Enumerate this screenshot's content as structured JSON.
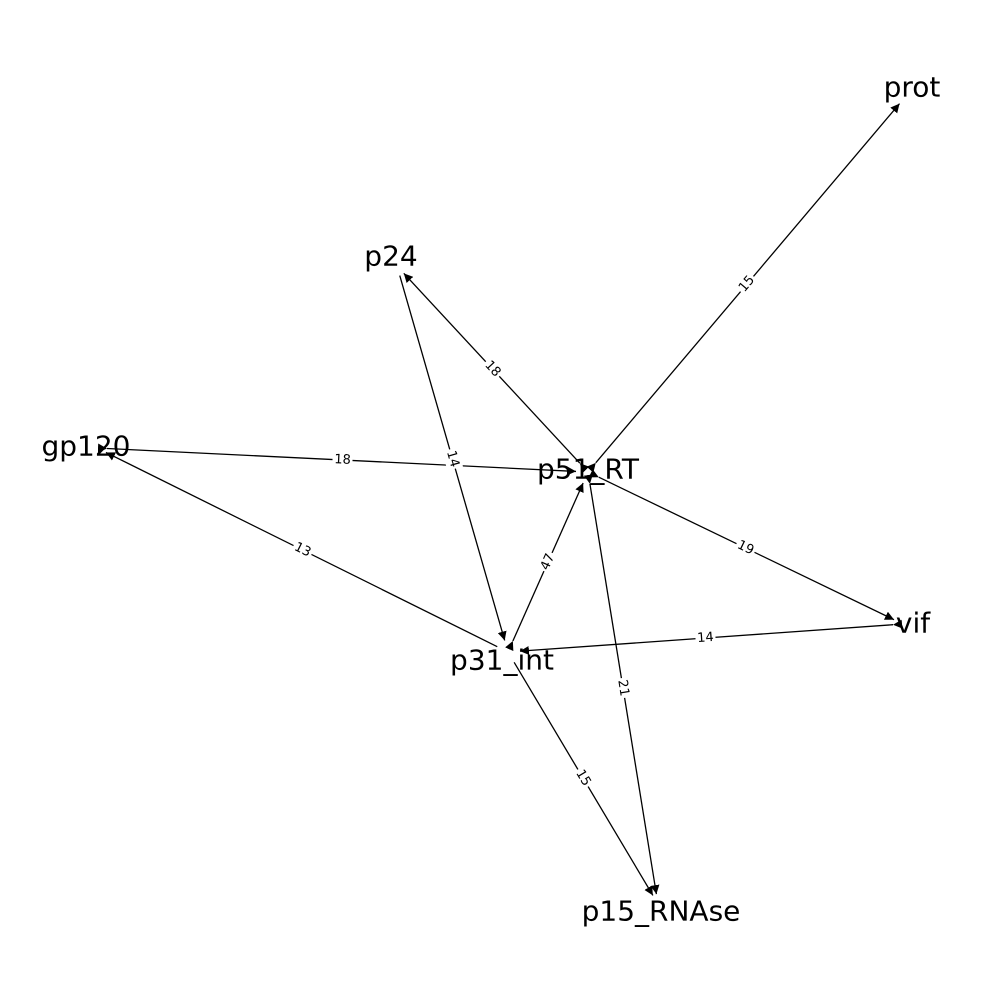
{
  "nodes": [
    {
      "id": "prot",
      "label": "prot"
    },
    {
      "id": "p24",
      "label": "p24"
    },
    {
      "id": "gp120",
      "label": "gp120"
    },
    {
      "id": "p51_RT",
      "label": "p51_RT"
    },
    {
      "id": "vif",
      "label": "vif"
    },
    {
      "id": "p31_int",
      "label": "p31_int"
    },
    {
      "id": "p15_RNAse",
      "label": "p15_RNAse"
    }
  ],
  "edges": [
    {
      "source": "p51_RT",
      "target": "prot",
      "label": "15",
      "bidirectional": true
    },
    {
      "source": "p51_RT",
      "target": "p24",
      "label": "18",
      "bidirectional": true
    },
    {
      "source": "gp120",
      "target": "p51_RT",
      "label": "18",
      "bidirectional": true
    },
    {
      "source": "p24",
      "target": "p31_int",
      "label": "14",
      "bidirectional": false
    },
    {
      "source": "p51_RT",
      "target": "vif",
      "label": "19",
      "bidirectional": true
    },
    {
      "source": "p31_int",
      "target": "p51_RT",
      "label": "47",
      "bidirectional": true
    },
    {
      "source": "p31_int",
      "target": "gp120",
      "label": "13",
      "bidirectional": false
    },
    {
      "source": "vif",
      "target": "p31_int",
      "label": "14",
      "bidirectional": true
    },
    {
      "source": "p51_RT",
      "target": "p15_RNAse",
      "label": "21",
      "bidirectional": true
    },
    {
      "source": "p31_int",
      "target": "p15_RNAse",
      "label": "15",
      "bidirectional": false
    }
  ]
}
